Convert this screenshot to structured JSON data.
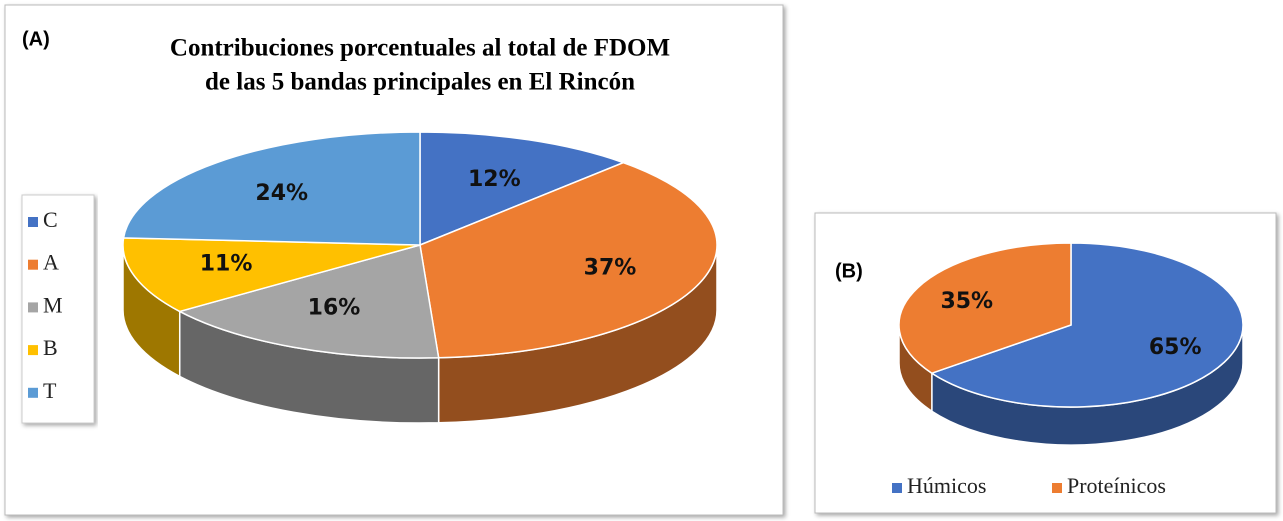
{
  "chart_data": [
    {
      "type": "pie",
      "panel_label": "(A)",
      "title": [
        "Contribuciones porcentuales al total de FDOM",
        "de las 5 bandas principales en El Rincón"
      ],
      "categories": [
        "C",
        "A",
        "M",
        "B",
        "T"
      ],
      "values": [
        12,
        37,
        16,
        11,
        24
      ],
      "value_labels": [
        "12%",
        "37%",
        "16%",
        "11%",
        "24%"
      ],
      "colors": [
        "#4472c4",
        "#ed7d31",
        "#a5a5a5",
        "#ffc000",
        "#5b9bd5"
      ],
      "legend": "left"
    },
    {
      "type": "pie",
      "panel_label": "(B)",
      "categories": [
        "Húmicos",
        "Proteínicos"
      ],
      "values": [
        65,
        35
      ],
      "value_labels": [
        "65%",
        "35%"
      ],
      "colors": [
        "#4472c4",
        "#ed7d31"
      ],
      "legend": "bottom"
    }
  ]
}
